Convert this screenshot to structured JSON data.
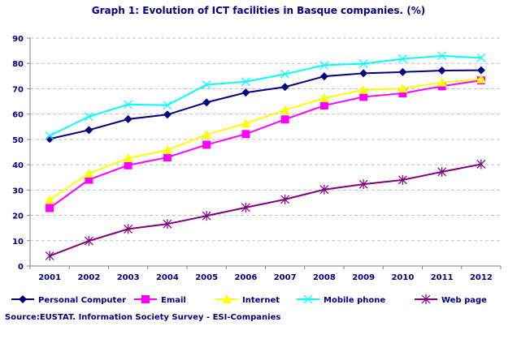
{
  "chart_data": {
    "type": "line",
    "title": "Graph 1: Evolution of ICT facilities in Basque companies. (%)",
    "source": "Source:EUSTAT. Information Society Survey - ESI-Companies",
    "x": [
      "2001",
      "2002",
      "2003",
      "2004",
      "2005",
      "2006",
      "2007",
      "2008",
      "2009",
      "2010",
      "2011",
      "2012"
    ],
    "ylim": [
      0,
      90
    ],
    "yticks": [
      0,
      10,
      20,
      30,
      40,
      50,
      60,
      70,
      80,
      90
    ],
    "grid": true,
    "legend_placement": "bottom",
    "series": [
      {
        "name": "Personal Computer",
        "color": "#000080",
        "marker": "diamond",
        "values": [
          50.2,
          53.7,
          58,
          59.8,
          64.6,
          68.5,
          70.7,
          74.9,
          76.1,
          76.6,
          77.2,
          77.3
        ]
      },
      {
        "name": "Email",
        "color": "#FF00FF",
        "marker": "square",
        "values": [
          22.9,
          34.1,
          39.8,
          42.9,
          47.9,
          52.1,
          57.9,
          63.4,
          66.8,
          68.2,
          71,
          73.3
        ]
      },
      {
        "name": "Internet",
        "color": "#FFFF00",
        "marker": "triangle",
        "values": [
          26.2,
          36.5,
          42.6,
          45.8,
          51.9,
          56.3,
          61.6,
          66.3,
          69.6,
          70.1,
          72.5,
          73.8
        ]
      },
      {
        "name": "Mobile phone",
        "color": "#00FFFF",
        "marker": "x",
        "values": [
          51.4,
          59,
          63.8,
          63.5,
          71.6,
          72.8,
          75.8,
          79.3,
          79.9,
          81.8,
          83,
          82.2
        ]
      },
      {
        "name": "Web page",
        "color": "#800080",
        "marker": "star",
        "values": [
          4,
          9.9,
          14.6,
          16.6,
          19.8,
          23.1,
          26.3,
          30.2,
          32.3,
          34,
          37.2,
          40.2
        ]
      }
    ]
  }
}
